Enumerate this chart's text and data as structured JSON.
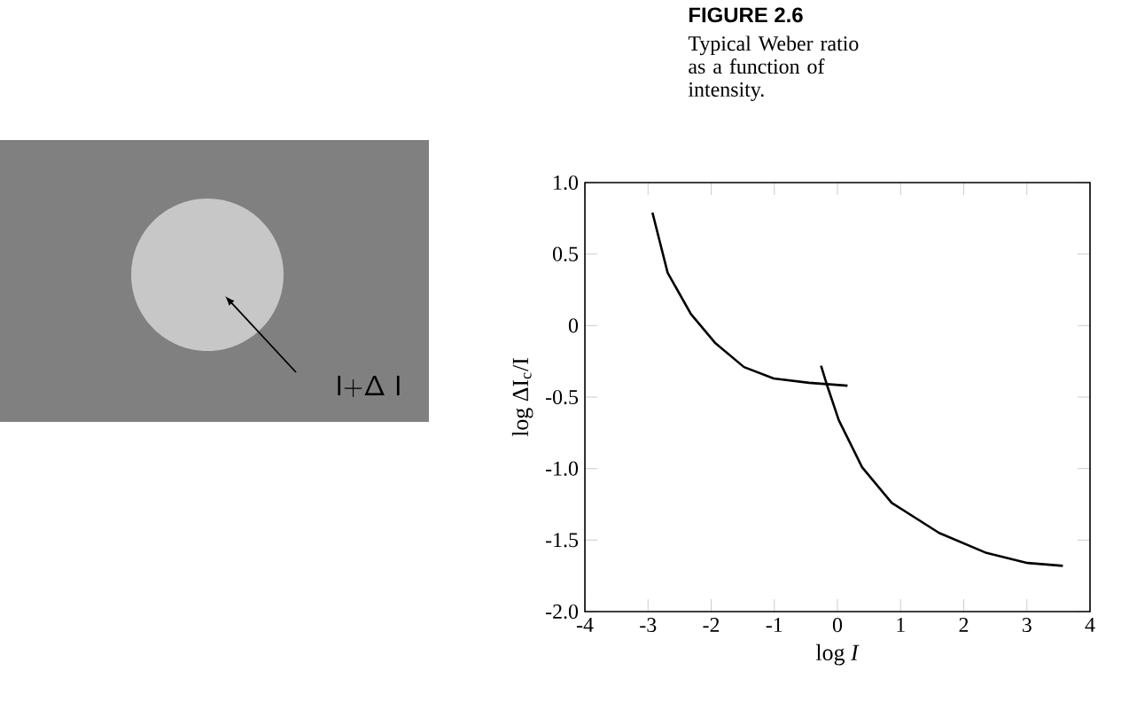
{
  "chart_data": {
    "type": "line",
    "title": "FIGURE 2.6",
    "subtitle": "Typical Weber ratio as a function of intensity.",
    "xlabel": "log *I*",
    "ylabel": "log ΔI$_{c}$/I",
    "annotations": [
      "I+Δ I"
    ],
    "xlim": [
      -4,
      4
    ],
    "ylim": [
      -2,
      1
    ],
    "xticks": [
      -4,
      -3,
      -2,
      -1,
      0,
      1,
      2,
      3,
      4
    ],
    "yticks": [
      {
        "value": -2,
        "label": "-2.0"
      },
      {
        "value": -1.5,
        "label": "-1.5"
      },
      {
        "value": -1,
        "label": "-1.0"
      },
      {
        "value": -0.5,
        "label": "-0.5"
      },
      {
        "value": 0,
        "label": "0"
      },
      {
        "value": 0.5,
        "label": "0.5"
      },
      {
        "value": 1,
        "label": "1.0"
      }
    ],
    "series": [
      {
        "color": "#000000",
        "x": [
          -2.93,
          -2.69,
          -2.32,
          -1.94,
          -1.48,
          -1.01,
          -0.45,
          0.16
        ],
        "values": [
          0.79,
          0.37,
          0.08,
          -0.12,
          -0.29,
          -0.37,
          -0.4,
          -0.42
        ]
      },
      {
        "color": "#000000",
        "x": [
          -0.26,
          -0.17,
          0.02,
          0.39,
          0.86,
          1.61,
          2.36,
          3.01,
          3.57
        ],
        "values": [
          -0.28,
          -0.41,
          -0.66,
          -0.99,
          -1.24,
          -1.45,
          -1.59,
          -1.66,
          -1.68
        ]
      }
    ]
  }
}
